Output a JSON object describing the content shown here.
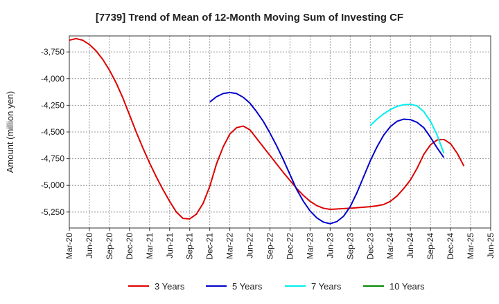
{
  "chart_data": {
    "type": "line",
    "title": "[7739]  Trend of Mean of 12-Month Moving Sum of Investing CF",
    "xlabel": "",
    "ylabel": "Amount (million yen)",
    "ylim": [
      -5400,
      -3600
    ],
    "yticks": [
      -3750,
      -4000,
      -4250,
      -4500,
      -4750,
      -5000,
      -5250
    ],
    "ytick_labels": [
      "-3,750",
      "-4,000",
      "-4,250",
      "-4,500",
      "-4,750",
      "-5,000",
      "-5,250"
    ],
    "xtick_labels": [
      "Mar-20",
      "Jun-20",
      "Sep-20",
      "Dec-20",
      "Mar-21",
      "Jun-21",
      "Sep-21",
      "Dec-21",
      "Mar-22",
      "Jun-22",
      "Sep-22",
      "Dec-22",
      "Mar-23",
      "Jun-23",
      "Sep-23",
      "Dec-23",
      "Mar-24",
      "Jun-24",
      "Sep-24",
      "Dec-24",
      "Mar-25",
      "Jun-25"
    ],
    "x_start": "Mar-20",
    "x_months": 63,
    "series": [
      {
        "name": "3 Years",
        "color": "#dd0000",
        "start_index": 0,
        "values": [
          -3640,
          -3625,
          -3640,
          -3680,
          -3740,
          -3820,
          -3920,
          -4040,
          -4180,
          -4340,
          -4500,
          -4650,
          -4790,
          -4920,
          -5040,
          -5150,
          -5250,
          -5310,
          -5315,
          -5270,
          -5170,
          -5010,
          -4800,
          -4640,
          -4520,
          -4460,
          -4445,
          -4480,
          -4560,
          -4640,
          -4720,
          -4800,
          -4880,
          -4955,
          -5030,
          -5095,
          -5150,
          -5190,
          -5215,
          -5225,
          -5222,
          -5218,
          -5215,
          -5210,
          -5205,
          -5200,
          -5192,
          -5180,
          -5150,
          -5100,
          -5030,
          -4950,
          -4840,
          -4710,
          -4620,
          -4575,
          -4570,
          -4610,
          -4700,
          -4820
        ]
      },
      {
        "name": "5 Years",
        "color": "#0000cc",
        "start_index": 21,
        "values": [
          -4220,
          -4170,
          -4140,
          -4130,
          -4140,
          -4175,
          -4230,
          -4310,
          -4400,
          -4510,
          -4630,
          -4760,
          -4900,
          -5040,
          -5150,
          -5240,
          -5305,
          -5345,
          -5360,
          -5340,
          -5290,
          -5200,
          -5070,
          -4920,
          -4770,
          -4640,
          -4530,
          -4450,
          -4400,
          -4380,
          -4385,
          -4410,
          -4460,
          -4550,
          -4650,
          -4740
        ]
      },
      {
        "name": "7 Years",
        "color": "#00eeee",
        "start_index": 45,
        "values": [
          -4440,
          -4380,
          -4330,
          -4290,
          -4260,
          -4245,
          -4240,
          -4255,
          -4310,
          -4400,
          -4530,
          -4700
        ]
      },
      {
        "name": "10 Years",
        "color": "#008800",
        "start_index": 63,
        "values": []
      }
    ],
    "legend_position": "bottom",
    "grid": true
  }
}
